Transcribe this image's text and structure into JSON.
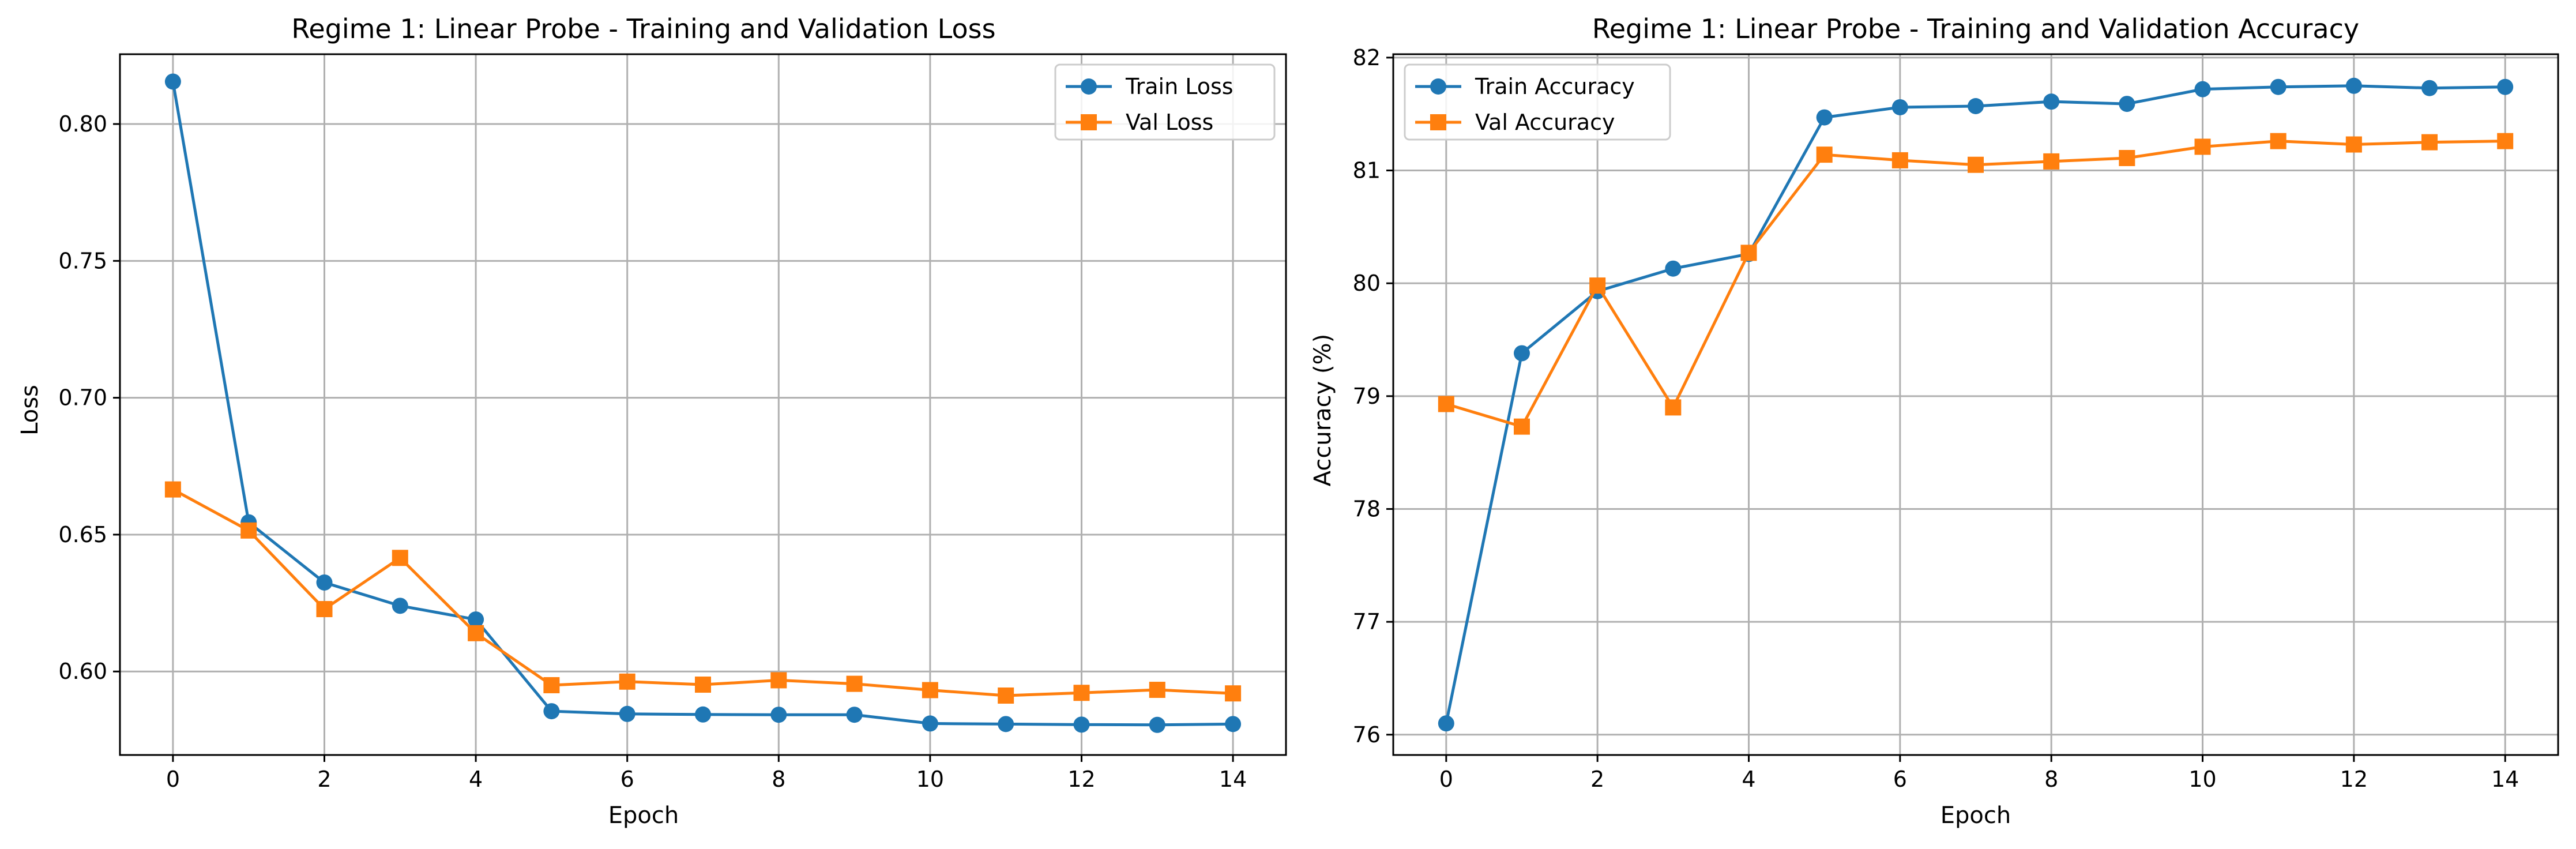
{
  "chart_data": [
    {
      "type": "line",
      "title": "Regime 1: Linear Probe - Training and Validation Loss",
      "xlabel": "Epoch",
      "ylabel": "Loss",
      "x": [
        0,
        1,
        2,
        3,
        4,
        5,
        6,
        7,
        8,
        9,
        10,
        11,
        12,
        13,
        14
      ],
      "xticks": [
        0,
        2,
        4,
        6,
        8,
        10,
        12,
        14
      ],
      "xtick_labels": [
        "0",
        "2",
        "4",
        "6",
        "8",
        "10",
        "12",
        "14"
      ],
      "xlim": [
        -0.7,
        14.7
      ],
      "yticks": [
        0.6,
        0.65,
        0.7,
        0.75,
        0.8
      ],
      "ytick_labels": [
        "0.60",
        "0.65",
        "0.70",
        "0.75",
        "0.80"
      ],
      "ylim": [
        0.5695,
        0.8255
      ],
      "grid": true,
      "legend_position": "top-right",
      "series": [
        {
          "name": "Train Loss",
          "color": "#1f77b4",
          "marker": "circle",
          "values": [
            0.8155,
            0.6545,
            0.6325,
            0.624,
            0.619,
            0.5855,
            0.5845,
            0.5843,
            0.5842,
            0.5842,
            0.581,
            0.5808,
            0.5806,
            0.5805,
            0.5808
          ]
        },
        {
          "name": "Val Loss",
          "color": "#ff7f0e",
          "marker": "square",
          "values": [
            0.6665,
            0.6515,
            0.6228,
            0.6415,
            0.614,
            0.595,
            0.5963,
            0.5952,
            0.5968,
            0.5955,
            0.5932,
            0.5912,
            0.5922,
            0.5933,
            0.592
          ]
        }
      ]
    },
    {
      "type": "line",
      "title": "Regime 1: Linear Probe - Training and Validation Accuracy",
      "xlabel": "Epoch",
      "ylabel": "Accuracy (%)",
      "x": [
        0,
        1,
        2,
        3,
        4,
        5,
        6,
        7,
        8,
        9,
        10,
        11,
        12,
        13,
        14
      ],
      "xticks": [
        0,
        2,
        4,
        6,
        8,
        10,
        12,
        14
      ],
      "xtick_labels": [
        "0",
        "2",
        "4",
        "6",
        "8",
        "10",
        "12",
        "14"
      ],
      "xlim": [
        -0.7,
        14.7
      ],
      "yticks": [
        76,
        77,
        78,
        79,
        80,
        81,
        82
      ],
      "ytick_labels": [
        "76",
        "77",
        "78",
        "79",
        "80",
        "81",
        "82"
      ],
      "ylim": [
        75.82,
        82.03
      ],
      "grid": true,
      "legend_position": "top-left",
      "series": [
        {
          "name": "Train Accuracy",
          "color": "#1f77b4",
          "marker": "circle",
          "values": [
            76.1,
            79.38,
            79.93,
            80.13,
            80.26,
            81.47,
            81.56,
            81.57,
            81.61,
            81.59,
            81.72,
            81.74,
            81.75,
            81.73,
            81.74
          ]
        },
        {
          "name": "Val Accuracy",
          "color": "#ff7f0e",
          "marker": "square",
          "values": [
            78.93,
            78.73,
            79.98,
            78.9,
            80.27,
            81.14,
            81.09,
            81.05,
            81.08,
            81.11,
            81.21,
            81.26,
            81.23,
            81.25,
            81.26
          ]
        }
      ]
    }
  ]
}
